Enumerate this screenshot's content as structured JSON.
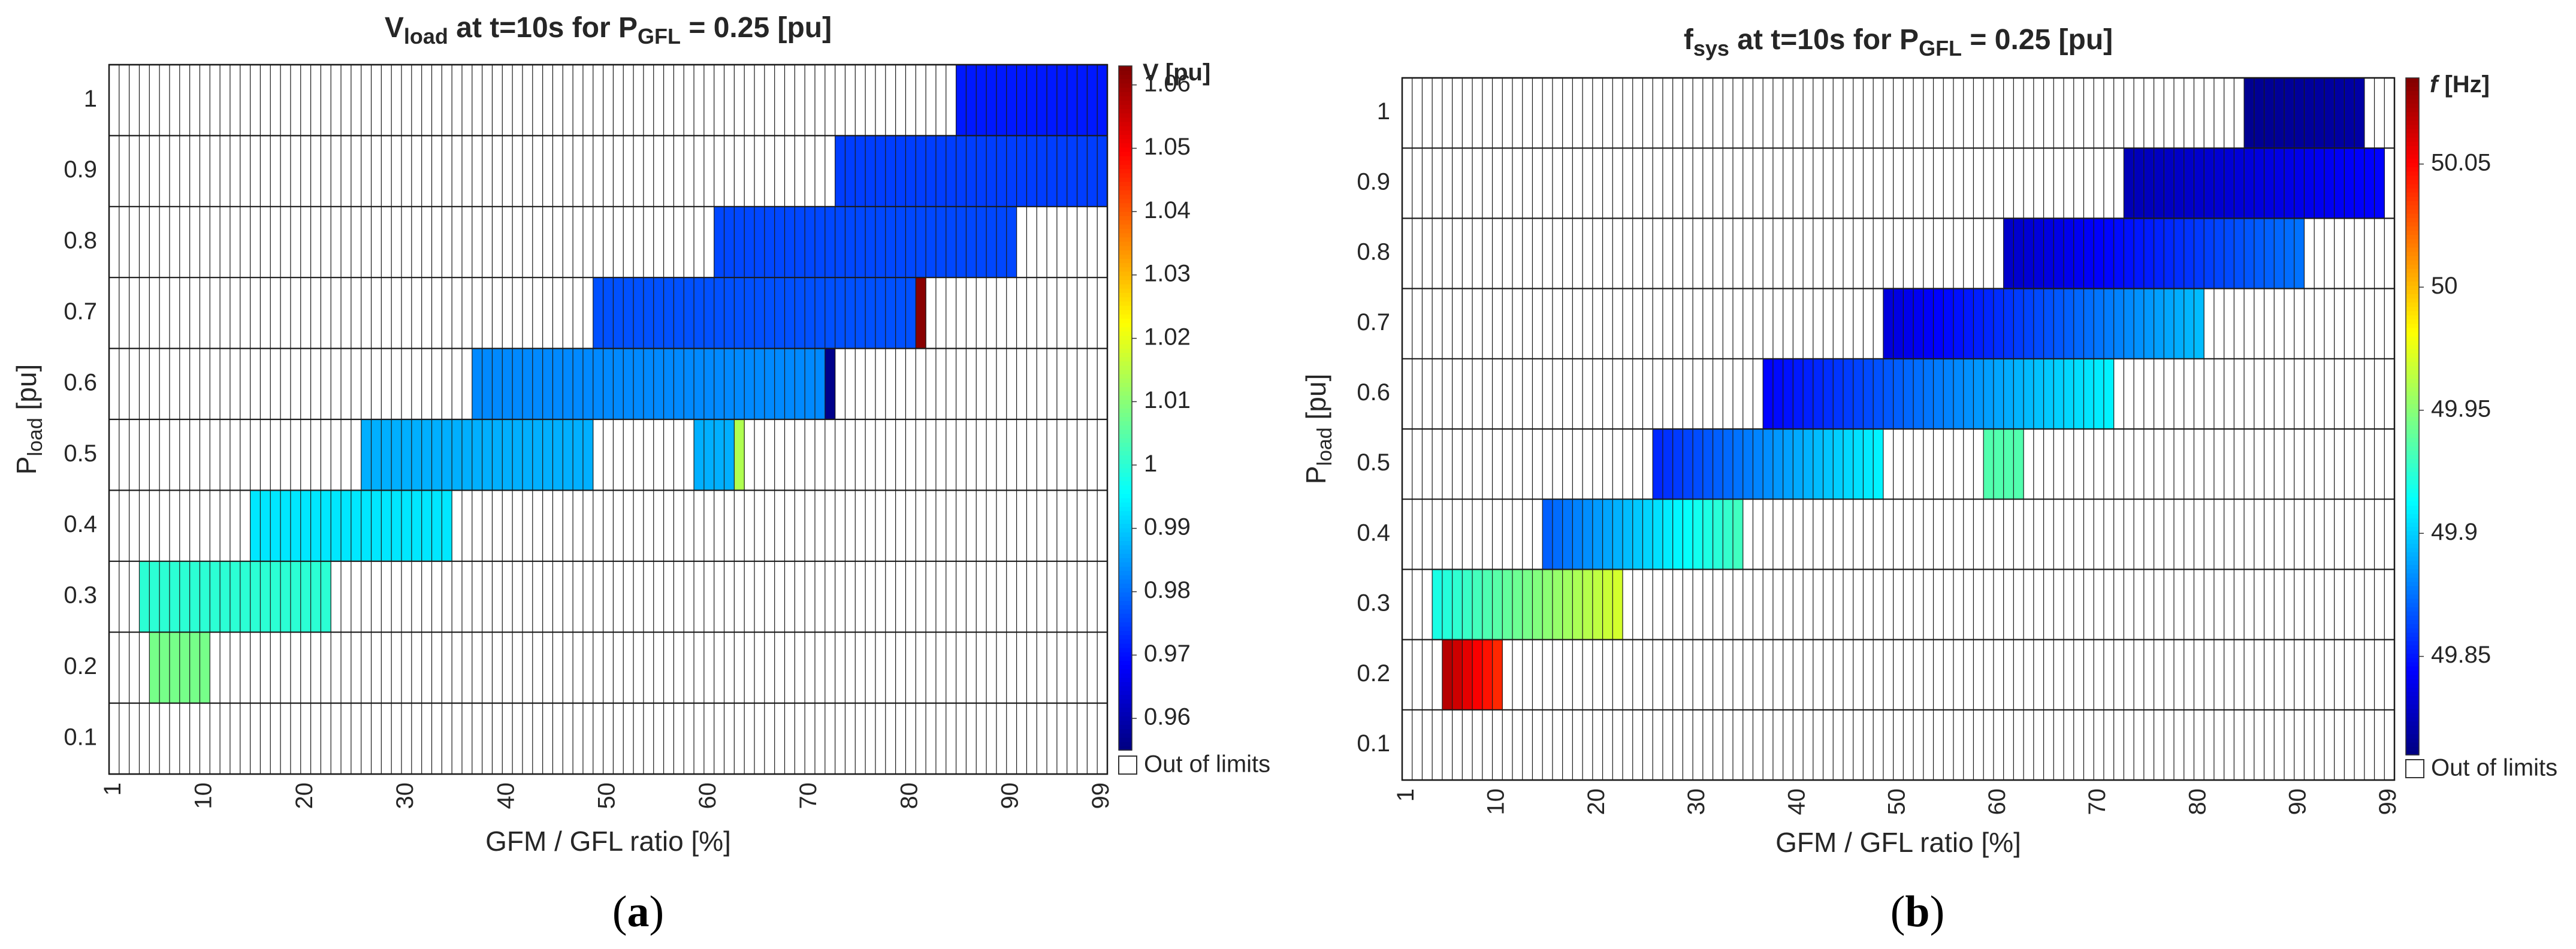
{
  "chart_data": [
    {
      "type": "heatmap",
      "panel": "(a)",
      "panel_letter": "a",
      "title_main": "V",
      "title_sub": "load",
      "title_rest": " at t=10s for P",
      "title_sub2": "GFL",
      "title_end": " = 0.25 [pu]",
      "xlabel": "GFM / GFL ratio [%]",
      "ylabel_main": "P",
      "ylabel_sub": "load",
      "ylabel_rest": " [pu]",
      "xlim": [
        1,
        99
      ],
      "ylim": [
        0.05,
        1.05
      ],
      "xticks": [
        "1",
        "10",
        "20",
        "30",
        "40",
        "50",
        "60",
        "70",
        "80",
        "90",
        "99"
      ],
      "yticks": [
        "0.1",
        "0.2",
        "0.3",
        "0.4",
        "0.5",
        "0.6",
        "0.7",
        "0.8",
        "0.9",
        "1"
      ],
      "colorbar": {
        "label": "V [pu]",
        "range": [
          0.955,
          1.063
        ],
        "ticks": [
          "0.96",
          "0.97",
          "0.98",
          "0.99",
          "1",
          "1.01",
          "1.02",
          "1.03",
          "1.04",
          "1.05",
          "1.06"
        ],
        "out_of_limits_label": "Out of limits"
      },
      "rows": [
        {
          "p_load": 0.2,
          "segments": [
            {
              "x_from": 5,
              "x_to": 10,
              "value": 1.008
            }
          ]
        },
        {
          "p_load": 0.3,
          "segments": [
            {
              "x_from": 4,
              "x_to": 22,
              "value": 1.0
            }
          ]
        },
        {
          "p_load": 0.4,
          "segments": [
            {
              "x_from": 15,
              "x_to": 34,
              "value": 0.993
            }
          ]
        },
        {
          "p_load": 0.5,
          "segments": [
            {
              "x_from": 26,
              "x_to": 48,
              "value": 0.987
            },
            {
              "x_from": 59,
              "x_to": 62,
              "value": 0.987
            },
            {
              "x_from": 63,
              "x_to": 63,
              "value": 1.014
            }
          ]
        },
        {
          "p_load": 0.6,
          "segments": [
            {
              "x_from": 37,
              "x_to": 71,
              "value": 0.983
            },
            {
              "x_from": 72,
              "x_to": 72,
              "value": 0.956
            }
          ]
        },
        {
          "p_load": 0.7,
          "segments": [
            {
              "x_from": 49,
              "x_to": 80,
              "value": 0.977
            },
            {
              "x_from": 81,
              "x_to": 81,
              "value": 1.062
            }
          ]
        },
        {
          "p_load": 0.8,
          "segments": [
            {
              "x_from": 61,
              "x_to": 90,
              "value": 0.976
            }
          ]
        },
        {
          "p_load": 0.9,
          "segments": [
            {
              "x_from": 73,
              "x_to": 99,
              "value": 0.975
            }
          ]
        },
        {
          "p_load": 1.0,
          "segments": [
            {
              "x_from": 85,
              "x_to": 99,
              "value": 0.971
            }
          ]
        }
      ]
    },
    {
      "type": "heatmap",
      "panel": "(b)",
      "panel_letter": "b",
      "title_main": "f",
      "title_sub": "sys",
      "title_rest": " at t=10s for P",
      "title_sub2": "GFL",
      "title_end": " = 0.25 [pu]",
      "xlabel": "GFM / GFL ratio [%]",
      "ylabel_main": "P",
      "ylabel_sub": "load",
      "ylabel_rest": " [pu]",
      "xlim": [
        1,
        99
      ],
      "ylim": [
        0.05,
        1.05
      ],
      "xticks": [
        "1",
        "10",
        "20",
        "30",
        "40",
        "50",
        "60",
        "70",
        "80",
        "90",
        "99"
      ],
      "yticks": [
        "0.1",
        "0.2",
        "0.3",
        "0.4",
        "0.5",
        "0.6",
        "0.7",
        "0.8",
        "0.9",
        "1"
      ],
      "colorbar": {
        "label_italic": "f",
        "label_rest": " [Hz]",
        "range": [
          49.81,
          50.085
        ],
        "ticks": [
          "49.85",
          "49.9",
          "49.95",
          "50",
          "50.05"
        ],
        "out_of_limits_label": "Out of limits"
      },
      "rows": [
        {
          "p_load": 0.2,
          "segments": [
            {
              "x_from": 5,
              "x_to": 10,
              "v_start": 50.07,
              "v_end": 50.04
            }
          ]
        },
        {
          "p_load": 0.3,
          "segments": [
            {
              "x_from": 4,
              "x_to": 22,
              "v_start": 49.92,
              "v_end": 49.97
            }
          ]
        },
        {
          "p_load": 0.4,
          "segments": [
            {
              "x_from": 15,
              "x_to": 34,
              "v_start": 49.87,
              "v_end": 49.93
            }
          ]
        },
        {
          "p_load": 0.5,
          "segments": [
            {
              "x_from": 26,
              "x_to": 48,
              "v_start": 49.855,
              "v_end": 49.91
            },
            {
              "x_from": 59,
              "x_to": 62,
              "v_start": 49.935,
              "v_end": 49.935
            }
          ]
        },
        {
          "p_load": 0.6,
          "segments": [
            {
              "x_from": 37,
              "x_to": 71,
              "v_start": 49.845,
              "v_end": 49.91
            }
          ]
        },
        {
          "p_load": 0.7,
          "segments": [
            {
              "x_from": 49,
              "x_to": 80,
              "v_start": 49.835,
              "v_end": 49.895
            }
          ]
        },
        {
          "p_load": 0.8,
          "segments": [
            {
              "x_from": 61,
              "x_to": 90,
              "v_start": 49.83,
              "v_end": 49.875
            }
          ]
        },
        {
          "p_load": 0.9,
          "segments": [
            {
              "x_from": 73,
              "x_to": 98,
              "v_start": 49.825,
              "v_end": 49.845
            }
          ]
        },
        {
          "p_load": 1.0,
          "segments": [
            {
              "x_from": 85,
              "x_to": 96,
              "v_start": 49.815,
              "v_end": 49.82
            }
          ]
        }
      ]
    }
  ]
}
